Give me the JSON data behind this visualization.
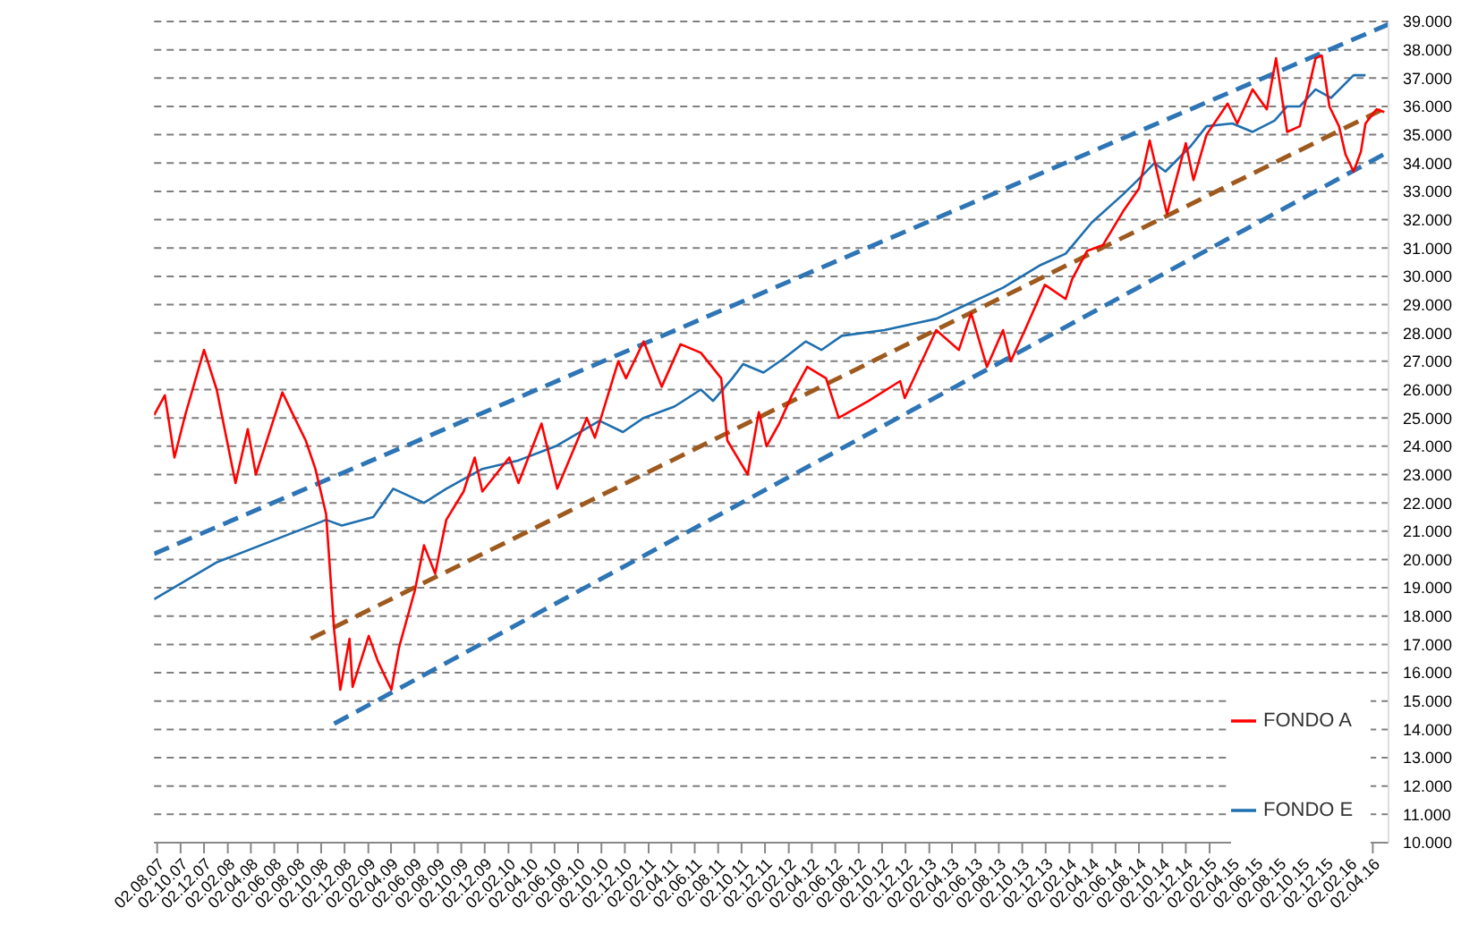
{
  "chart_data": {
    "type": "line",
    "xlim": [
      "2007-07-25",
      "2016-05-13"
    ],
    "ylim": [
      10000,
      39000
    ],
    "xticks": [
      {
        "value": "2007-08-02",
        "label": "02.08.07"
      },
      {
        "value": "2007-10-02",
        "label": "02.10.07"
      },
      {
        "value": "2007-12-02",
        "label": "02.12.07"
      },
      {
        "value": "2008-02-02",
        "label": "02.02.08"
      },
      {
        "value": "2008-04-02",
        "label": "02.04.08"
      },
      {
        "value": "2008-06-02",
        "label": "02.06.08"
      },
      {
        "value": "2008-08-02",
        "label": "02.08.08"
      },
      {
        "value": "2008-10-02",
        "label": "02.10.08"
      },
      {
        "value": "2008-12-02",
        "label": "02.12.08"
      },
      {
        "value": "2009-02-02",
        "label": "02.02.09"
      },
      {
        "value": "2009-04-02",
        "label": "02.04.09"
      },
      {
        "value": "2009-06-02",
        "label": "02.06.09"
      },
      {
        "value": "2009-08-02",
        "label": "02.08.09"
      },
      {
        "value": "2009-10-02",
        "label": "02.10.09"
      },
      {
        "value": "2009-12-02",
        "label": "02.12.09"
      },
      {
        "value": "2010-02-02",
        "label": "02.02.10"
      },
      {
        "value": "2010-04-02",
        "label": "02.04.10"
      },
      {
        "value": "2010-06-02",
        "label": "02.06.10"
      },
      {
        "value": "2010-08-02",
        "label": "02.08.10"
      },
      {
        "value": "2010-10-02",
        "label": "02.10.10"
      },
      {
        "value": "2010-12-02",
        "label": "02.12.10"
      },
      {
        "value": "2011-02-02",
        "label": "02.02.11"
      },
      {
        "value": "2011-04-02",
        "label": "02.04.11"
      },
      {
        "value": "2011-06-02",
        "label": "02.06.11"
      },
      {
        "value": "2011-08-02",
        "label": "02.08.11"
      },
      {
        "value": "2011-10-02",
        "label": "02.10.11"
      },
      {
        "value": "2011-12-02",
        "label": "02.12.11"
      },
      {
        "value": "2012-02-02",
        "label": "02.02.12"
      },
      {
        "value": "2012-04-02",
        "label": "02.04.12"
      },
      {
        "value": "2012-06-02",
        "label": "02.06.12"
      },
      {
        "value": "2012-08-02",
        "label": "02.08.12"
      },
      {
        "value": "2012-10-02",
        "label": "02.10.12"
      },
      {
        "value": "2012-12-02",
        "label": "02.12.12"
      },
      {
        "value": "2013-02-02",
        "label": "02.02.13"
      },
      {
        "value": "2013-04-02",
        "label": "02.04.13"
      },
      {
        "value": "2013-06-02",
        "label": "02.06.13"
      },
      {
        "value": "2013-08-02",
        "label": "02.08.13"
      },
      {
        "value": "2013-10-02",
        "label": "02.10.13"
      },
      {
        "value": "2013-12-02",
        "label": "02.12.13"
      },
      {
        "value": "2014-02-02",
        "label": "02.02.14"
      },
      {
        "value": "2014-04-02",
        "label": "02.04.14"
      },
      {
        "value": "2014-06-02",
        "label": "02.06.14"
      },
      {
        "value": "2014-08-02",
        "label": "02.08.14"
      },
      {
        "value": "2014-10-02",
        "label": "02.10.14"
      },
      {
        "value": "2014-12-02",
        "label": "02.12.14"
      },
      {
        "value": "2015-02-02",
        "label": "02.02.15"
      },
      {
        "value": "2015-04-02",
        "label": "02.04.15"
      },
      {
        "value": "2015-06-02",
        "label": "02.06.15"
      },
      {
        "value": "2015-08-02",
        "label": "02.08.15"
      },
      {
        "value": "2015-10-02",
        "label": "02.10.15"
      },
      {
        "value": "2015-12-02",
        "label": "02.12.15"
      },
      {
        "value": "2016-02-02",
        "label": "02.02.16"
      },
      {
        "value": "2016-04-02",
        "label": "02.04.16"
      }
    ],
    "yticks": [
      {
        "value": 10000,
        "label": "10.000"
      },
      {
        "value": 11000,
        "label": "11.000"
      },
      {
        "value": 12000,
        "label": "12.000"
      },
      {
        "value": 13000,
        "label": "13.000"
      },
      {
        "value": 14000,
        "label": "14.000"
      },
      {
        "value": 15000,
        "label": "15.000"
      },
      {
        "value": 16000,
        "label": "16.000"
      },
      {
        "value": 17000,
        "label": "17.000"
      },
      {
        "value": 18000,
        "label": "18.000"
      },
      {
        "value": 19000,
        "label": "19.000"
      },
      {
        "value": 20000,
        "label": "20.000"
      },
      {
        "value": 21000,
        "label": "21.000"
      },
      {
        "value": 22000,
        "label": "22.000"
      },
      {
        "value": 23000,
        "label": "23.000"
      },
      {
        "value": 24000,
        "label": "24.000"
      },
      {
        "value": 25000,
        "label": "25.000"
      },
      {
        "value": 26000,
        "label": "26.000"
      },
      {
        "value": 27000,
        "label": "27.000"
      },
      {
        "value": 28000,
        "label": "28.000"
      },
      {
        "value": 29000,
        "label": "29.000"
      },
      {
        "value": 30000,
        "label": "30.000"
      },
      {
        "value": 31000,
        "label": "31.000"
      },
      {
        "value": 32000,
        "label": "32.000"
      },
      {
        "value": 33000,
        "label": "33.000"
      },
      {
        "value": 34000,
        "label": "34.000"
      },
      {
        "value": 35000,
        "label": "35.000"
      },
      {
        "value": 36000,
        "label": "36.000"
      },
      {
        "value": 37000,
        "label": "37.000"
      },
      {
        "value": 38000,
        "label": "38.000"
      },
      {
        "value": 39000,
        "label": "39.000"
      }
    ],
    "grid": "y",
    "legend": "bottom right",
    "marker": "none",
    "line_style": "solid",
    "series": [
      {
        "type": "line",
        "color": "#2e75b6",
        "line_style": "dashed",
        "x": [
          "2007-07-25",
          "2016-05-13"
        ],
        "values": [
          20200,
          38900
        ]
      },
      {
        "type": "line",
        "color": "#9e5a1e",
        "line_style": "dashed",
        "x": [
          "2008-09-05",
          "2016-05-13"
        ],
        "values": [
          17200,
          36000
        ]
      },
      {
        "type": "line",
        "color": "#2e75b6",
        "line_style": "dashed",
        "x": [
          "2008-11-05",
          "2016-05-13"
        ],
        "values": [
          14200,
          34400
        ]
      },
      {
        "name": "FONDO E",
        "color": "#1f6fae",
        "x": [
          "2007-07-25",
          "2008-01-04",
          "2008-06-23",
          "2008-10-15",
          "2008-11-25",
          "2009-02-15",
          "2009-04-08",
          "2009-06-27",
          "2009-08-24",
          "2009-11-26",
          "2010-02-28",
          "2010-06-05",
          "2010-09-27",
          "2010-11-27",
          "2011-01-20",
          "2011-04-10",
          "2011-06-18",
          "2011-07-20",
          "2011-09-08",
          "2011-10-06",
          "2011-11-28",
          "2012-01-20",
          "2012-03-17",
          "2012-04-27",
          "2012-06-19",
          "2012-10-08",
          "2013-02-20",
          "2013-05-10",
          "2013-08-13",
          "2013-11-19",
          "2014-01-23",
          "2014-04-01",
          "2014-06-22",
          "2014-08-14",
          "2014-09-11",
          "2014-10-10",
          "2014-12-15",
          "2015-01-25",
          "2015-04-02",
          "2015-05-25",
          "2015-07-21",
          "2015-08-23",
          "2015-09-25",
          "2015-11-05",
          "2015-12-15",
          "2016-02-12",
          "2016-03-14"
        ],
        "values": [
          18600,
          19900,
          20800,
          21400,
          21200,
          21500,
          22500,
          22000,
          22500,
          23200,
          23500,
          24000,
          24900,
          24500,
          25000,
          25400,
          26000,
          25600,
          26400,
          26900,
          26600,
          27100,
          27700,
          27400,
          27900,
          28100,
          28500,
          29000,
          29600,
          30400,
          30800,
          31900,
          32900,
          33600,
          34000,
          33700,
          34600,
          35300,
          35400,
          35100,
          35500,
          36000,
          36000,
          36600,
          36300,
          37100,
          37100
        ]
      },
      {
        "name": "FONDO A",
        "color": "#ff0000",
        "x": [
          "2007-07-25",
          "2007-08-22",
          "2007-09-16",
          "2007-10-14",
          "2007-12-02",
          "2008-01-04",
          "2008-02-22",
          "2008-03-25",
          "2008-04-15",
          "2008-06-23",
          "2008-07-25",
          "2008-08-23",
          "2008-09-17",
          "2008-10-15",
          "2008-11-05",
          "2008-11-21",
          "2008-12-15",
          "2008-12-23",
          "2009-02-03",
          "2009-02-27",
          "2009-04-03",
          "2009-04-23",
          "2009-06-03",
          "2009-06-27",
          "2009-07-26",
          "2009-08-24",
          "2009-10-08",
          "2009-11-06",
          "2009-11-26",
          "2010-02-04",
          "2010-02-28",
          "2010-04-29",
          "2010-06-09",
          "2010-08-25",
          "2010-09-15",
          "2010-11-15",
          "2010-12-05",
          "2011-01-20",
          "2011-03-08",
          "2011-04-26",
          "2011-06-18",
          "2011-08-10",
          "2011-08-26",
          "2011-10-18",
          "2011-11-16",
          "2011-12-06",
          "2012-01-08",
          "2012-02-10",
          "2012-03-21",
          "2012-05-09",
          "2012-06-11",
          "2012-08-28",
          "2012-11-18",
          "2012-11-30",
          "2013-02-20",
          "2013-04-20",
          "2013-05-22",
          "2013-07-02",
          "2013-08-13",
          "2013-09-02",
          "2013-10-09",
          "2013-11-30",
          "2014-01-23",
          "2014-02-09",
          "2014-03-20",
          "2014-04-30",
          "2014-06-22",
          "2014-08-02",
          "2014-08-30",
          "2014-10-14",
          "2014-12-02",
          "2014-12-22",
          "2015-01-25",
          "2015-03-21",
          "2015-04-15",
          "2015-05-25",
          "2015-07-01",
          "2015-07-25",
          "2015-08-23",
          "2015-09-25",
          "2015-11-05",
          "2015-11-21",
          "2015-12-11",
          "2016-01-05",
          "2016-01-22",
          "2016-02-12",
          "2016-03-02",
          "2016-03-14",
          "2016-04-12",
          "2016-05-02"
        ],
        "values": [
          25100,
          25800,
          23600,
          25100,
          27400,
          26000,
          22700,
          24600,
          23000,
          25900,
          25000,
          24200,
          23200,
          21600,
          17500,
          15400,
          17200,
          15500,
          17300,
          16400,
          15400,
          16900,
          18900,
          20500,
          19500,
          21400,
          22400,
          23600,
          22400,
          23600,
          22700,
          24800,
          22500,
          25000,
          24300,
          27000,
          26400,
          27700,
          26100,
          27600,
          27300,
          26400,
          24200,
          23000,
          25200,
          24000,
          24800,
          25800,
          26800,
          26400,
          25000,
          25600,
          26300,
          25700,
          28100,
          27400,
          28700,
          26800,
          28100,
          27000,
          28100,
          29700,
          29200,
          29900,
          30900,
          31100,
          32300,
          33100,
          34800,
          32200,
          34700,
          33400,
          35000,
          36100,
          35400,
          36600,
          35900,
          37700,
          35100,
          35300,
          37700,
          37800,
          36000,
          35300,
          34300,
          33700,
          34400,
          35400,
          35900,
          35800
        ]
      }
    ]
  }
}
